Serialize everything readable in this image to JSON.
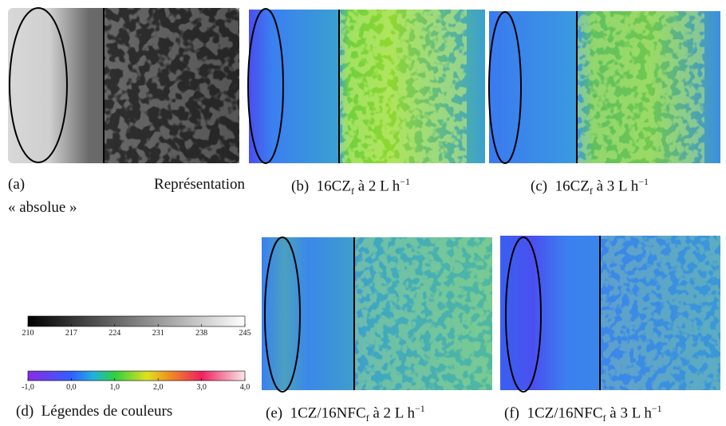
{
  "captions": [
    {
      "label": "(a)",
      "text": "Représentation",
      "line2": "« absolue »"
    },
    {
      "label": "(b)",
      "text": "16CZ",
      "sub": "f",
      "rest": "à 2 L h",
      "sup": "−1"
    },
    {
      "label": "(c)",
      "text": "16CZ",
      "sub": "f",
      "rest": "à 3 L h",
      "sup": "−1"
    },
    {
      "label": "(d)",
      "text": "Légendes de couleurs"
    },
    {
      "label": "(e)",
      "text": "1CZ/16NFC",
      "sub": "f",
      "rest": "à 2 L h",
      "sup": "−1"
    },
    {
      "label": "(f)",
      "text": "1CZ/16NFC",
      "sub": "f",
      "rest": "à 3 L h",
      "sup": "−1"
    }
  ],
  "legends": {
    "gray": {
      "ticks": [
        210,
        217,
        224,
        231,
        238,
        245
      ]
    },
    "color": {
      "ticks": [
        "-1,0",
        "0,0",
        "1,0",
        "2,0",
        "3,0",
        "4,0"
      ]
    }
  }
}
